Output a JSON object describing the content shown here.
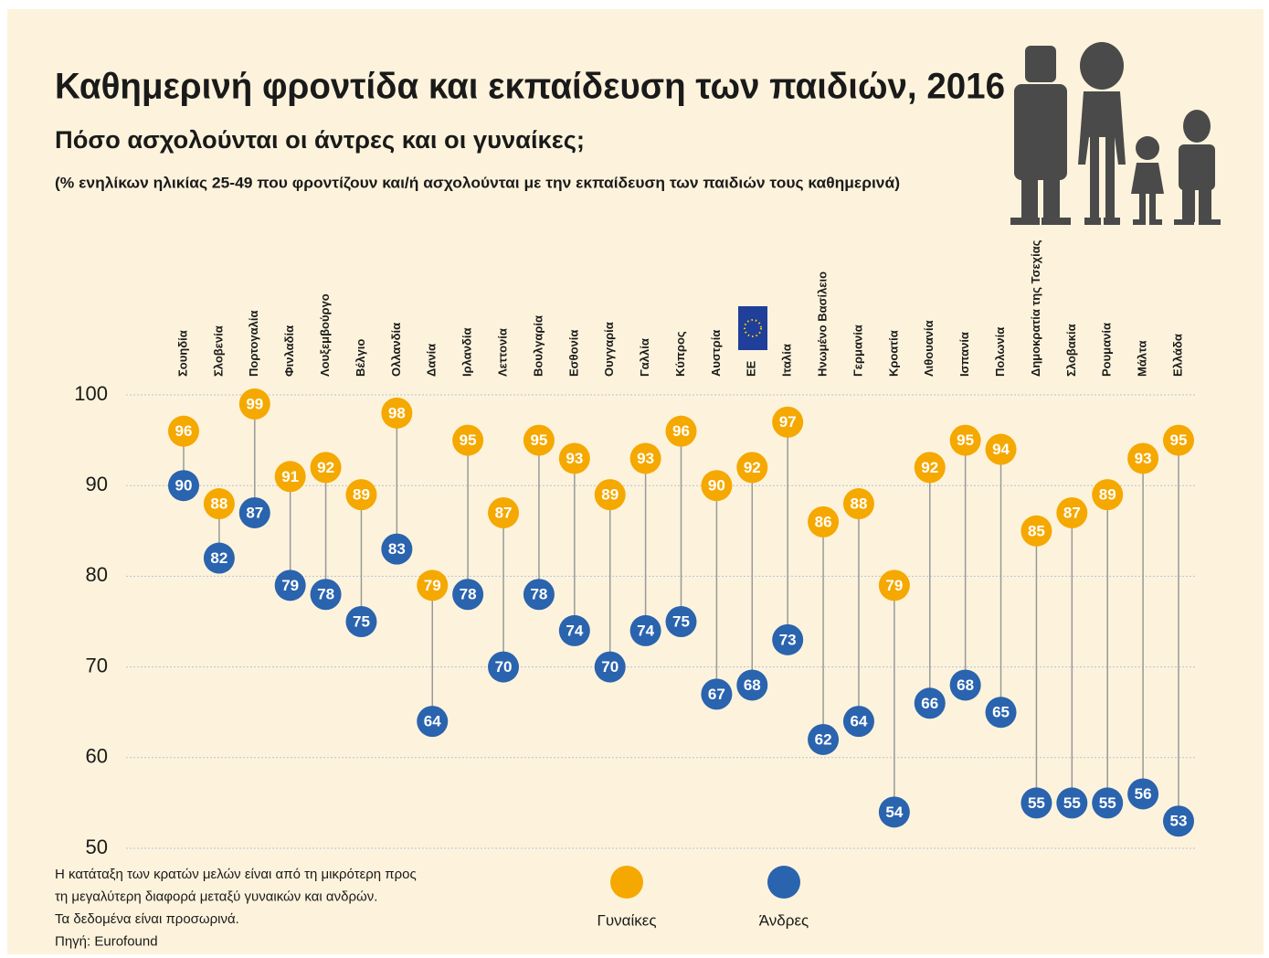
{
  "chart_data": {
    "type": "dumbbell",
    "title": "Καθημερινή φροντίδα και εκπαίδευση των παιδιών, 2016",
    "subtitle": "Πόσο ασχολούνται οι άντρες και οι γυναίκες;",
    "note": "(% ενηλίκων ηλικίας 25-49 που φροντίζουν και/ή ασχολούνται με την εκπαίδευση των παιδιών τους καθημερινά)",
    "categories": [
      "Σουηδία",
      "Σλοβενία",
      "Πορτογαλία",
      "Φινλαδία",
      "Λουξεμβούργο",
      "Βέλγιο",
      "Ολλανδία",
      "Δανία",
      "Ιρλανδία",
      "Λεττονία",
      "Βουλγαρία",
      "Εσθονία",
      "Ουγγαρία",
      "Γαλλία",
      "Κύπρος",
      "Αυστρία",
      "ΕΕ",
      "Ιταλία",
      "Ηνωμένο Βασίλειο",
      "Γερμανία",
      "Κροατία",
      "Λιθουανία",
      "Ισπανία",
      "Πολωνία",
      "Δημοκρατία της Τσεχίας",
      "Σλοβακία",
      "Ρουμανία",
      "Μάλτα",
      "Ελλάδα"
    ],
    "series": [
      {
        "name": "Γυναίκες",
        "color": "#f5a800",
        "values": [
          96,
          88,
          99,
          91,
          92,
          89,
          98,
          79,
          95,
          87,
          95,
          93,
          89,
          93,
          96,
          90,
          92,
          97,
          86,
          88,
          79,
          92,
          95,
          94,
          85,
          87,
          89,
          93,
          95
        ]
      },
      {
        "name": "Άνδρες",
        "color": "#2a63ae",
        "values": [
          90,
          82,
          87,
          79,
          78,
          75,
          83,
          64,
          78,
          70,
          78,
          74,
          70,
          74,
          75,
          67,
          68,
          73,
          62,
          64,
          54,
          66,
          68,
          65,
          55,
          55,
          55,
          56,
          53
        ]
      }
    ],
    "ylim": [
      50,
      100
    ],
    "yticks": [
      50,
      60,
      70,
      80,
      90,
      100
    ],
    "grid": true,
    "footnotes": [
      "Η κατάταξη των κρατών μελών είναι από τη μικρότερη προς",
      "τη μεγαλύτερη διαφορά μεταξύ γυναικών και ανδρών.",
      "Τα δεδομένα είναι προσωρινά.",
      "Πηγή: Eurofound"
    ]
  }
}
